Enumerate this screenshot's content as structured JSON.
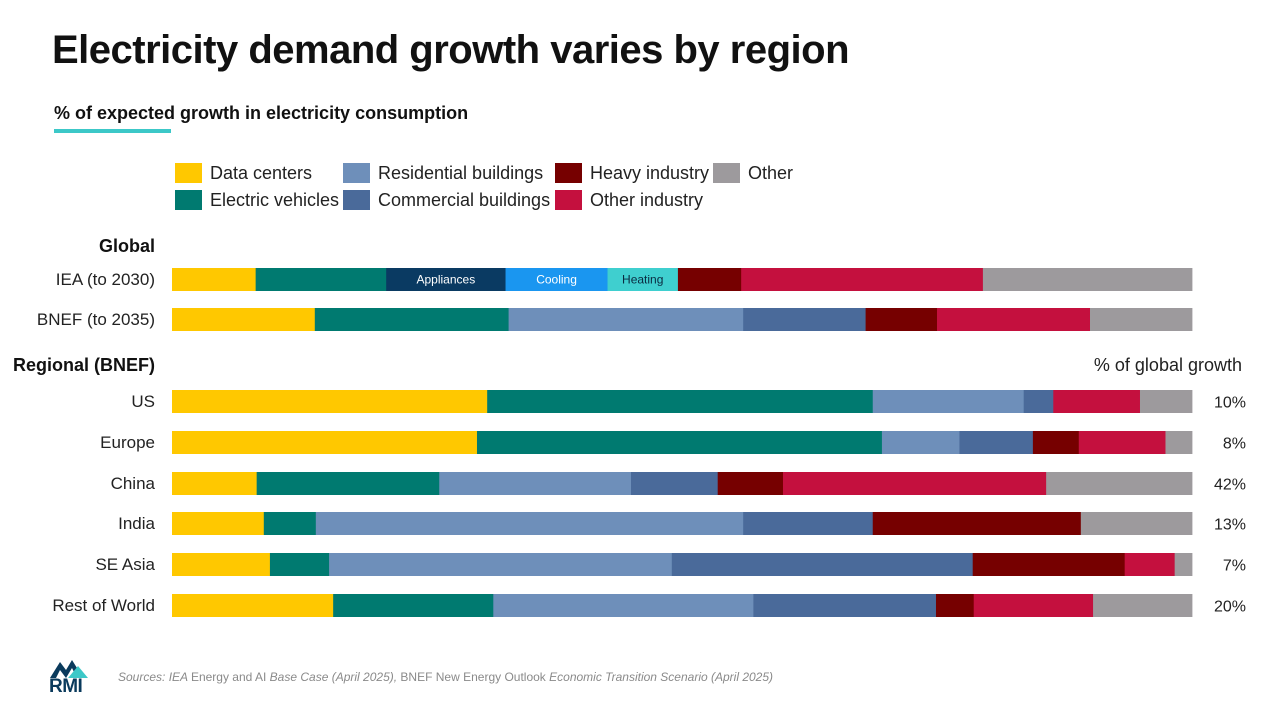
{
  "title": "Electricity demand growth varies by region",
  "subtitle": "% of expected growth in electricity consumption",
  "legend": [
    {
      "label": "Data centers",
      "color": "#ffc800"
    },
    {
      "label": "Electric vehicles",
      "color": "#007a70"
    },
    {
      "label": "Residential buildings",
      "color": "#6e8fba"
    },
    {
      "label": "Commercial buildings",
      "color": "#4a6a9a"
    },
    {
      "label": "Heavy industry",
      "color": "#760000"
    },
    {
      "label": "Other industry",
      "color": "#c4103e"
    },
    {
      "label": "Other",
      "color": "#9d9a9d"
    }
  ],
  "sections": {
    "global": "Global",
    "regional": "Regional (BNEF)",
    "right_header": "% of global growth"
  },
  "footer": {
    "prefix": "Sources: ",
    "iea_italic": "IEA ",
    "iea_report": "Energy and AI ",
    "iea_case": "Base Case (April 2025), ",
    "bnef_name": "BNEF ",
    "bnef_report": "New Energy Outlook ",
    "bnef_scenario": "Economic Transition Scenario (April 2025)"
  },
  "logo_text": "RMI",
  "chart_data": {
    "type": "bar",
    "orientation": "horizontal",
    "stacked": true,
    "unit": "%",
    "rows": [
      {
        "label": "IEA (to 2030)",
        "group": "Global",
        "segments": [
          {
            "category": "Data centers",
            "value": 8.2,
            "color": "#ffc800"
          },
          {
            "category": "Electric vehicles",
            "value": 12.8,
            "color": "#007a70"
          },
          {
            "category": "Appliances",
            "value": 11.7,
            "color": "#0a3a62",
            "label": "Appliances"
          },
          {
            "category": "Cooling",
            "value": 10.0,
            "color": "#1a96f0",
            "label": "Cooling"
          },
          {
            "category": "Heating",
            "value": 6.9,
            "color": "#3fcfcf",
            "label": "Heating"
          },
          {
            "category": "Heavy industry",
            "value": 6.2,
            "color": "#760000"
          },
          {
            "category": "Other industry",
            "value": 23.7,
            "color": "#c4103e"
          },
          {
            "category": "Other",
            "value": 20.5,
            "color": "#9d9a9d"
          }
        ]
      },
      {
        "label": "BNEF (to 2035)",
        "group": "Global",
        "segments": [
          {
            "category": "Data centers",
            "value": 14.0,
            "color": "#ffc800"
          },
          {
            "category": "Electric vehicles",
            "value": 19.0,
            "color": "#007a70"
          },
          {
            "category": "Residential buildings",
            "value": 23.0,
            "color": "#6e8fba"
          },
          {
            "category": "Commercial buildings",
            "value": 12.0,
            "color": "#4a6a9a"
          },
          {
            "category": "Heavy industry",
            "value": 7.0,
            "color": "#760000"
          },
          {
            "category": "Other industry",
            "value": 15.0,
            "color": "#c4103e"
          },
          {
            "category": "Other",
            "value": 10.0,
            "color": "#9d9a9d"
          }
        ]
      },
      {
        "label": "US",
        "group": "Regional (BNEF)",
        "share": "10%",
        "segments": [
          {
            "category": "Data centers",
            "value": 30.9,
            "color": "#ffc800"
          },
          {
            "category": "Electric vehicles",
            "value": 37.8,
            "color": "#007a70"
          },
          {
            "category": "Residential buildings",
            "value": 14.8,
            "color": "#6e8fba"
          },
          {
            "category": "Commercial buildings",
            "value": 2.9,
            "color": "#4a6a9a"
          },
          {
            "category": "Heavy industry",
            "value": 0.0,
            "color": "#760000"
          },
          {
            "category": "Other industry",
            "value": 8.5,
            "color": "#c4103e"
          },
          {
            "category": "Other",
            "value": 5.1,
            "color": "#9d9a9d"
          }
        ]
      },
      {
        "label": "Europe",
        "group": "Regional (BNEF)",
        "share": "8%",
        "segments": [
          {
            "category": "Data centers",
            "value": 29.9,
            "color": "#ffc800"
          },
          {
            "category": "Electric vehicles",
            "value": 39.7,
            "color": "#007a70"
          },
          {
            "category": "Residential buildings",
            "value": 7.6,
            "color": "#6e8fba"
          },
          {
            "category": "Commercial buildings",
            "value": 7.2,
            "color": "#4a6a9a"
          },
          {
            "category": "Heavy industry",
            "value": 4.5,
            "color": "#760000"
          },
          {
            "category": "Other industry",
            "value": 8.5,
            "color": "#c4103e"
          },
          {
            "category": "Other",
            "value": 2.6,
            "color": "#9d9a9d"
          }
        ]
      },
      {
        "label": "China",
        "group": "Regional (BNEF)",
        "share": "42%",
        "segments": [
          {
            "category": "Data centers",
            "value": 8.3,
            "color": "#ffc800"
          },
          {
            "category": "Electric vehicles",
            "value": 17.9,
            "color": "#007a70"
          },
          {
            "category": "Residential buildings",
            "value": 18.8,
            "color": "#6e8fba"
          },
          {
            "category": "Commercial buildings",
            "value": 8.5,
            "color": "#4a6a9a"
          },
          {
            "category": "Heavy industry",
            "value": 6.4,
            "color": "#760000"
          },
          {
            "category": "Other industry",
            "value": 25.8,
            "color": "#c4103e"
          },
          {
            "category": "Other",
            "value": 14.3,
            "color": "#9d9a9d"
          }
        ]
      },
      {
        "label": "India",
        "group": "Regional (BNEF)",
        "share": "13%",
        "segments": [
          {
            "category": "Data centers",
            "value": 9.0,
            "color": "#ffc800"
          },
          {
            "category": "Electric vehicles",
            "value": 5.1,
            "color": "#007a70"
          },
          {
            "category": "Residential buildings",
            "value": 41.9,
            "color": "#6e8fba"
          },
          {
            "category": "Commercial buildings",
            "value": 12.7,
            "color": "#4a6a9a"
          },
          {
            "category": "Heavy industry",
            "value": 20.4,
            "color": "#760000"
          },
          {
            "category": "Other industry",
            "value": 0.0,
            "color": "#c4103e"
          },
          {
            "category": "Other",
            "value": 10.9,
            "color": "#9d9a9d"
          }
        ]
      },
      {
        "label": "SE Asia",
        "group": "Regional (BNEF)",
        "share": "7%",
        "segments": [
          {
            "category": "Data centers",
            "value": 9.6,
            "color": "#ffc800"
          },
          {
            "category": "Electric vehicles",
            "value": 5.8,
            "color": "#007a70"
          },
          {
            "category": "Residential buildings",
            "value": 33.6,
            "color": "#6e8fba"
          },
          {
            "category": "Commercial buildings",
            "value": 29.5,
            "color": "#4a6a9a"
          },
          {
            "category": "Heavy industry",
            "value": 14.9,
            "color": "#760000"
          },
          {
            "category": "Other industry",
            "value": 4.9,
            "color": "#c4103e"
          },
          {
            "category": "Other",
            "value": 1.7,
            "color": "#9d9a9d"
          }
        ]
      },
      {
        "label": "Rest of World",
        "group": "Regional (BNEF)",
        "share": "20%",
        "segments": [
          {
            "category": "Data centers",
            "value": 15.8,
            "color": "#ffc800"
          },
          {
            "category": "Electric vehicles",
            "value": 15.7,
            "color": "#007a70"
          },
          {
            "category": "Residential buildings",
            "value": 25.5,
            "color": "#6e8fba"
          },
          {
            "category": "Commercial buildings",
            "value": 17.9,
            "color": "#4a6a9a"
          },
          {
            "category": "Heavy industry",
            "value": 3.7,
            "color": "#760000"
          },
          {
            "category": "Other industry",
            "value": 11.7,
            "color": "#c4103e"
          },
          {
            "category": "Other",
            "value": 9.7,
            "color": "#9d9a9d"
          }
        ]
      }
    ]
  }
}
